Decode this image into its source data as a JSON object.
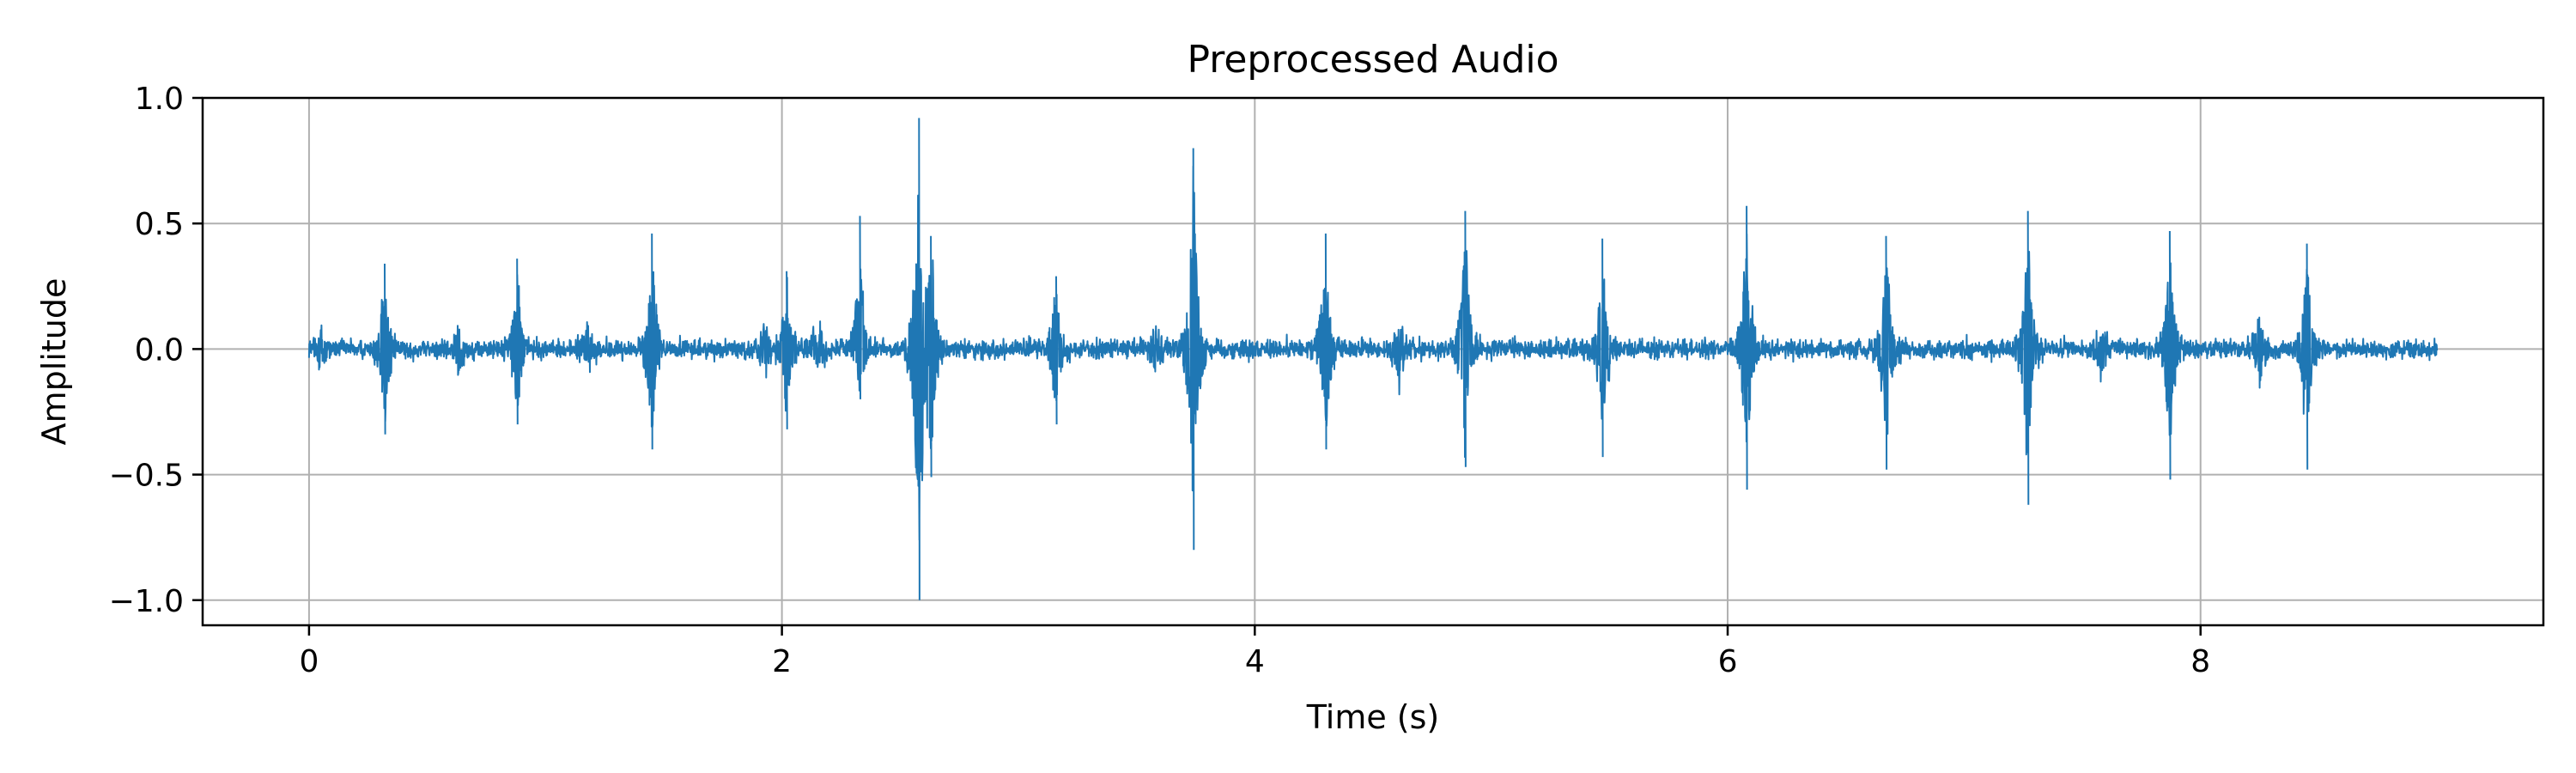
{
  "chart_data": {
    "type": "line",
    "title": "Preprocessed Audio",
    "xlabel": "Time (s)",
    "ylabel": "Amplitude",
    "xlim": [
      -0.45,
      9.45
    ],
    "ylim": [
      -1.1,
      1.0
    ],
    "x_ticks": [
      0,
      2,
      4,
      6,
      8
    ],
    "x_tick_labels": [
      "0",
      "2",
      "4",
      "6",
      "8"
    ],
    "y_ticks": [
      1.0,
      0.5,
      0.0,
      -0.5,
      -1.0
    ],
    "y_tick_labels": [
      "1.0",
      "0.5",
      "0.0",
      "−0.5",
      "−1.0"
    ],
    "grid": true,
    "line_color": "#1f77b4",
    "duration": 9.0,
    "noise_level": 0.018,
    "events": [
      {
        "t": 0.32,
        "pos": 0.34,
        "neg": -0.34
      },
      {
        "t": 0.88,
        "pos": 0.36,
        "neg": -0.3
      },
      {
        "t": 1.45,
        "pos": 0.46,
        "neg": -0.4
      },
      {
        "t": 2.02,
        "pos": 0.31,
        "neg": -0.32
      },
      {
        "t": 2.33,
        "pos": 0.53,
        "neg": -0.2
      },
      {
        "t": 2.58,
        "pos": 0.92,
        "neg": -1.0
      },
      {
        "t": 2.63,
        "pos": 0.45,
        "neg": -0.51
      },
      {
        "t": 3.16,
        "pos": 0.29,
        "neg": -0.3
      },
      {
        "t": 3.74,
        "pos": 0.8,
        "neg": -0.8
      },
      {
        "t": 4.3,
        "pos": 0.46,
        "neg": -0.4
      },
      {
        "t": 4.89,
        "pos": 0.55,
        "neg": -0.47
      },
      {
        "t": 5.47,
        "pos": 0.44,
        "neg": -0.43
      },
      {
        "t": 6.08,
        "pos": 0.57,
        "neg": -0.56
      },
      {
        "t": 6.67,
        "pos": 0.45,
        "neg": -0.48
      },
      {
        "t": 7.27,
        "pos": 0.55,
        "neg": -0.62
      },
      {
        "t": 7.87,
        "pos": 0.47,
        "neg": -0.52
      },
      {
        "t": 8.45,
        "pos": 0.42,
        "neg": -0.48
      }
    ],
    "minor_events": [
      {
        "t": 0.05,
        "amp": 0.1
      },
      {
        "t": 0.63,
        "amp": 0.11
      },
      {
        "t": 1.18,
        "amp": 0.14
      },
      {
        "t": 1.93,
        "amp": 0.13
      },
      {
        "t": 2.15,
        "amp": 0.15
      },
      {
        "t": 3.58,
        "amp": 0.12
      },
      {
        "t": 4.61,
        "amp": 0.16
      },
      {
        "t": 7.58,
        "amp": 0.12
      },
      {
        "t": 8.25,
        "amp": 0.16
      }
    ]
  }
}
